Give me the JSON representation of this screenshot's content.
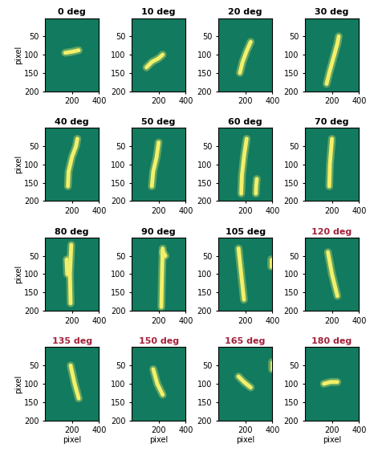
{
  "chart_data": [
    {
      "type": "line",
      "title": "0 deg",
      "ylabel": "pixel",
      "xlim": [
        0,
        400
      ],
      "ylim": [
        200,
        0
      ],
      "xticks": [
        200,
        400
      ],
      "yticks": [
        50,
        100,
        150,
        200
      ],
      "color": "#f2f06a",
      "series": [
        {
          "x": [
            150,
            200,
            250
          ],
          "values": [
            95,
            92,
            88
          ]
        }
      ]
    },
    {
      "type": "line",
      "title": "10 deg",
      "xlim": [
        0,
        400
      ],
      "ylim": [
        200,
        0
      ],
      "xticks": [
        200,
        400
      ],
      "yticks": [
        50,
        100,
        150,
        200
      ],
      "color": "#f2f06a",
      "series": [
        {
          "x": [
            110,
            150,
            200,
            230
          ],
          "values": [
            135,
            120,
            110,
            100
          ]
        }
      ]
    },
    {
      "type": "line",
      "title": "20 deg",
      "xlim": [
        0,
        400
      ],
      "ylim": [
        200,
        0
      ],
      "xticks": [
        200,
        400
      ],
      "yticks": [
        50,
        100,
        150,
        200
      ],
      "color": "#f2f06a",
      "series": [
        {
          "x": [
            160,
            180,
            210,
            240
          ],
          "values": [
            150,
            120,
            90,
            65
          ]
        }
      ]
    },
    {
      "type": "line",
      "title": "30 deg",
      "xlim": [
        0,
        400
      ],
      "ylim": [
        200,
        0
      ],
      "xticks": [
        200,
        400
      ],
      "yticks": [
        50,
        100,
        150,
        200
      ],
      "color": "#f2f06a",
      "series": [
        {
          "x": [
            160,
            180,
            210,
            240,
            250
          ],
          "values": [
            180,
            150,
            110,
            70,
            50
          ]
        }
      ]
    },
    {
      "type": "line",
      "title": "40 deg",
      "ylabel": "pixel",
      "xlim": [
        0,
        400
      ],
      "ylim": [
        200,
        0
      ],
      "xticks": [
        200,
        400
      ],
      "yticks": [
        50,
        100,
        150,
        200
      ],
      "color": "#f2f06a",
      "series": [
        {
          "x": [
            170,
            175,
            200,
            230,
            240
          ],
          "values": [
            160,
            120,
            80,
            50,
            30
          ]
        }
      ]
    },
    {
      "type": "line",
      "title": "50 deg",
      "xlim": [
        0,
        400
      ],
      "ylim": [
        200,
        0
      ],
      "xticks": [
        200,
        400
      ],
      "yticks": [
        50,
        100,
        150,
        200
      ],
      "color": "#f2f06a",
      "series": [
        {
          "x": [
            150,
            160,
            185,
            200
          ],
          "values": [
            160,
            120,
            80,
            40
          ]
        }
      ]
    },
    {
      "type": "line",
      "title": "60 deg",
      "xlim": [
        0,
        400
      ],
      "ylim": [
        200,
        0
      ],
      "xticks": [
        200,
        400
      ],
      "yticks": [
        50,
        100,
        150,
        200
      ],
      "color": "#f2f06a",
      "series": [
        {
          "x": [
            170,
            175,
            190,
            210
          ],
          "values": [
            180,
            130,
            80,
            30
          ]
        },
        {
          "x": [
            285,
            280,
            278
          ],
          "values": [
            140,
            160,
            180
          ]
        }
      ]
    },
    {
      "type": "line",
      "title": "70 deg",
      "xlim": [
        0,
        400
      ],
      "ylim": [
        200,
        0
      ],
      "xticks": [
        200,
        400
      ],
      "yticks": [
        50,
        100,
        150,
        200
      ],
      "color": "#f2f06a",
      "series": [
        {
          "x": [
            180,
            185,
            200
          ],
          "values": [
            160,
            100,
            30
          ]
        }
      ]
    },
    {
      "type": "line",
      "title": "80 deg",
      "ylabel": "pixel",
      "xlim": [
        0,
        400
      ],
      "ylim": [
        200,
        0
      ],
      "xticks": [
        200,
        400
      ],
      "yticks": [
        50,
        100,
        150,
        200
      ],
      "color": "#f2f06a",
      "series": [
        {
          "x": [
            190,
            185,
            195
          ],
          "values": [
            180,
            100,
            20
          ]
        },
        {
          "x": [
            160,
            165
          ],
          "values": [
            60,
            100
          ]
        }
      ]
    },
    {
      "type": "line",
      "title": "90 deg",
      "xlim": [
        0,
        400
      ],
      "ylim": [
        200,
        0
      ],
      "xticks": [
        200,
        400
      ],
      "yticks": [
        50,
        100,
        150,
        200
      ],
      "color": "#f2f06a",
      "series": [
        {
          "x": [
            220,
            225,
            230
          ],
          "values": [
            190,
            100,
            30
          ]
        },
        {
          "x": [
            230,
            250
          ],
          "values": [
            40,
            50
          ]
        }
      ]
    },
    {
      "type": "line",
      "title": "105 deg",
      "xlim": [
        0,
        400
      ],
      "ylim": [
        200,
        0
      ],
      "xticks": [
        200,
        400
      ],
      "yticks": [
        50,
        100,
        150,
        200
      ],
      "color": "#f2f06a",
      "series": [
        {
          "x": [
            150,
            170,
            190
          ],
          "values": [
            30,
            100,
            170
          ]
        },
        {
          "x": [
            390,
            390
          ],
          "values": [
            60,
            80
          ]
        }
      ]
    },
    {
      "type": "line",
      "title": "120 deg",
      "xlim": [
        0,
        400
      ],
      "ylim": [
        200,
        0
      ],
      "xticks": [
        200,
        400
      ],
      "yticks": [
        50,
        100,
        150,
        200
      ],
      "color": "#f2f06a",
      "series": [
        {
          "x": [
            170,
            200,
            240
          ],
          "values": [
            40,
            100,
            160
          ]
        }
      ]
    },
    {
      "type": "line",
      "title": "135 deg",
      "ylabel": "pixel",
      "xlabel": "pixel",
      "xlim": [
        0,
        400
      ],
      "ylim": [
        200,
        0
      ],
      "xticks": [
        200,
        400
      ],
      "yticks": [
        50,
        100,
        150,
        200
      ],
      "color": "#f2f06a",
      "series": [
        {
          "x": [
            190,
            220,
            250
          ],
          "values": [
            50,
            100,
            140
          ]
        }
      ]
    },
    {
      "type": "line",
      "title": "150 deg",
      "xlabel": "pixel",
      "xlim": [
        0,
        400
      ],
      "ylim": [
        200,
        0
      ],
      "xticks": [
        200,
        400
      ],
      "yticks": [
        50,
        100,
        150,
        200
      ],
      "color": "#f2f06a",
      "series": [
        {
          "x": [
            160,
            190,
            230
          ],
          "values": [
            60,
            100,
            130
          ]
        }
      ]
    },
    {
      "type": "line",
      "title": "165 deg",
      "xlabel": "pixel",
      "xlim": [
        0,
        400
      ],
      "ylim": [
        200,
        0
      ],
      "xticks": [
        200,
        400
      ],
      "yticks": [
        50,
        100,
        150,
        200
      ],
      "color": "#f2f06a",
      "series": [
        {
          "x": [
            150,
            190,
            240
          ],
          "values": [
            80,
            95,
            110
          ]
        },
        {
          "x": [
            395,
            395
          ],
          "values": [
            40,
            60
          ]
        }
      ]
    },
    {
      "type": "line",
      "title": "180 deg",
      "xlabel": "pixel",
      "xlim": [
        0,
        400
      ],
      "ylim": [
        200,
        0
      ],
      "xticks": [
        200,
        400
      ],
      "yticks": [
        50,
        100,
        150,
        200
      ],
      "color": "#f2f06a",
      "series": [
        {
          "x": [
            140,
            190,
            240
          ],
          "values": [
            100,
            95,
            95
          ]
        }
      ]
    }
  ]
}
